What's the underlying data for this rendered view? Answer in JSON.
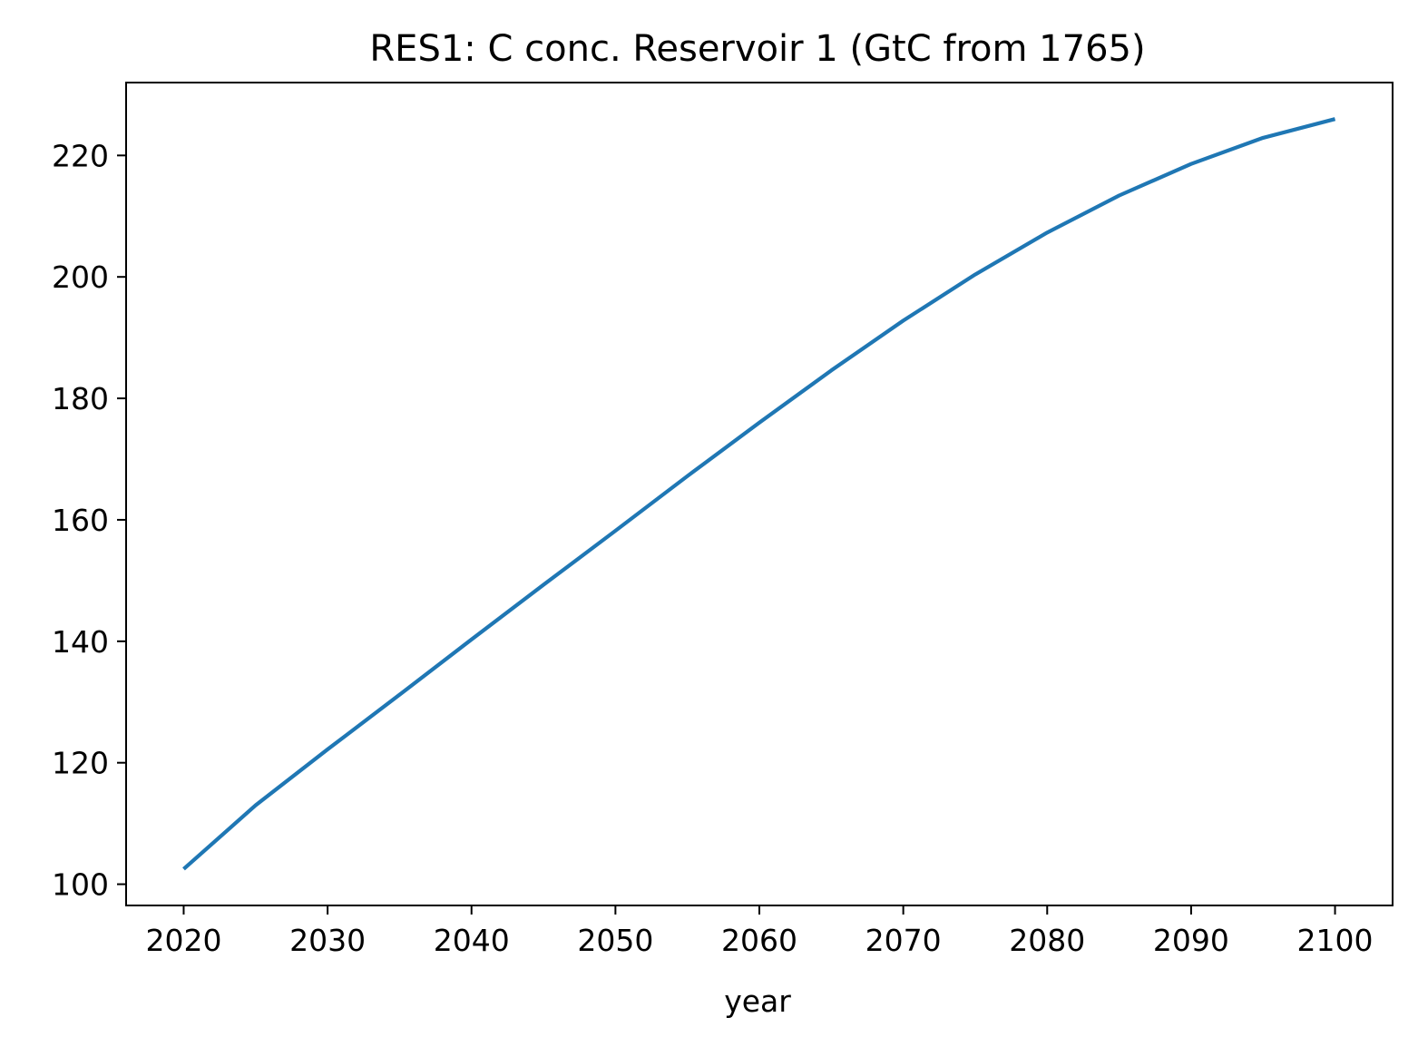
{
  "chart_data": {
    "type": "line",
    "title": "RES1: C conc. Reservoir 1 (GtC from 1765)",
    "xlabel": "year",
    "ylabel": "",
    "xlim": [
      2016,
      2104
    ],
    "ylim": [
      96.5,
      232
    ],
    "xticks": [
      2020,
      2030,
      2040,
      2050,
      2060,
      2070,
      2080,
      2090,
      2100
    ],
    "yticks": [
      100,
      120,
      140,
      160,
      180,
      200,
      220
    ],
    "grid": false,
    "legend": "none",
    "series": [
      {
        "color": "#1f77b4",
        "x": [
          2020,
          2025,
          2030,
          2035,
          2040,
          2045,
          2050,
          2055,
          2060,
          2065,
          2070,
          2075,
          2080,
          2085,
          2090,
          2095,
          2100
        ],
        "values": [
          102.5,
          113.0,
          122.2,
          131.2,
          140.3,
          149.3,
          158.2,
          167.2,
          176.0,
          184.6,
          192.8,
          200.4,
          207.3,
          213.4,
          218.6,
          222.9,
          226.0
        ]
      }
    ]
  }
}
